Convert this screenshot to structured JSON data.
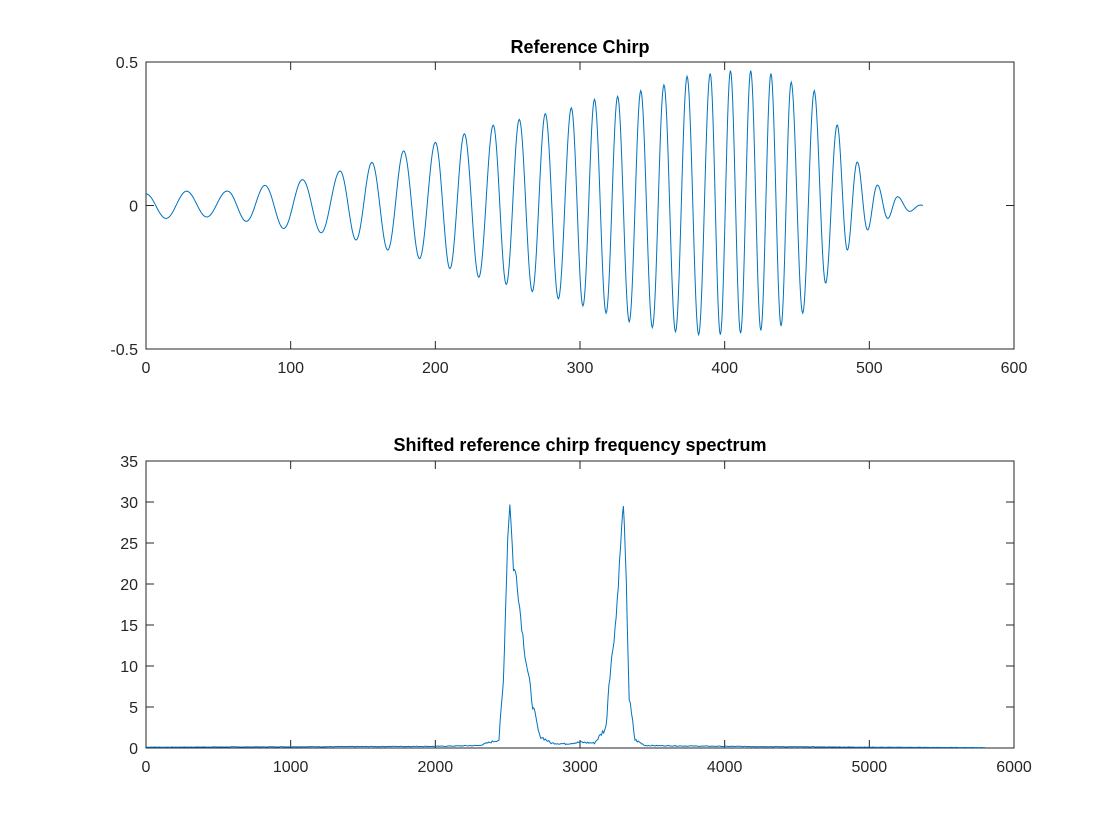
{
  "figure": {
    "background": "#ffffff",
    "line_color": "#0072bd",
    "axis_color": "#262626"
  },
  "chart_data": [
    {
      "type": "line",
      "title": "Reference Chirp",
      "xlabel": "",
      "ylabel": "",
      "xlim": [
        0,
        600
      ],
      "ylim": [
        -0.5,
        0.5
      ],
      "xticks": [
        0,
        100,
        200,
        300,
        400,
        500,
        600
      ],
      "yticks": [
        -0.5,
        0,
        0.5
      ],
      "xtick_labels": [
        "0",
        "100",
        "200",
        "300",
        "400",
        "500",
        "600"
      ],
      "ytick_labels": [
        "-0.5",
        "0",
        "0.5"
      ],
      "grid": false,
      "series": [
        {
          "color": "#0072bd",
          "x_range": [
            0,
            537
          ],
          "description_points": {
            "x": [
              0,
              28,
              56,
              82,
              108,
              134,
              156,
              178,
              200,
              220,
              240,
              258,
              276,
              294,
              310,
              326,
              342,
              358,
              374,
              390,
              404,
              418,
              432,
              446,
              462,
              478,
              492,
              506,
              520,
              537
            ],
            "peak_y": [
              0.04,
              0.05,
              0.05,
              0.07,
              0.09,
              0.12,
              0.15,
              0.19,
              0.22,
              0.25,
              0.28,
              0.3,
              0.32,
              0.34,
              0.37,
              0.38,
              0.4,
              0.42,
              0.45,
              0.46,
              0.47,
              0.47,
              0.46,
              0.43,
              0.4,
              0.28,
              0.15,
              0.07,
              0.03,
              0.0
            ],
            "trough_y": [
              -0.05,
              -0.04,
              -0.04,
              -0.07,
              -0.09,
              -0.1,
              -0.14,
              -0.17,
              -0.2,
              -0.24,
              -0.26,
              -0.29,
              -0.31,
              -0.34,
              -0.36,
              -0.39,
              -0.42,
              -0.43,
              -0.45,
              -0.45,
              -0.45,
              -0.44,
              -0.43,
              -0.41,
              -0.34,
              -0.2,
              -0.11,
              -0.06,
              -0.03,
              -0.01
            ]
          }
        }
      ]
    },
    {
      "type": "line",
      "title": "Shifted reference chirp frequency spectrum",
      "xlabel": "",
      "ylabel": "",
      "xlim": [
        0,
        6000
      ],
      "ylim": [
        0,
        35
      ],
      "xticks": [
        0,
        1000,
        2000,
        3000,
        4000,
        5000,
        6000
      ],
      "yticks": [
        0,
        5,
        10,
        15,
        20,
        25,
        30,
        35
      ],
      "xtick_labels": [
        "0",
        "1000",
        "2000",
        "3000",
        "4000",
        "5000",
        "6000"
      ],
      "ytick_labels": [
        "0",
        "5",
        "10",
        "15",
        "20",
        "25",
        "30",
        "35"
      ],
      "grid": false,
      "series": [
        {
          "color": "#0072bd",
          "x": [
            0,
            2000,
            2300,
            2440,
            2470,
            2500,
            2515,
            2540,
            2560,
            2590,
            2620,
            2650,
            2680,
            2720,
            2800,
            2900,
            3000,
            3100,
            3180,
            3200,
            3220,
            3250,
            3280,
            3300,
            3320,
            3340,
            3380,
            3450,
            4000,
            5000,
            5800
          ],
          "y": [
            0.1,
            0.2,
            0.3,
            1.0,
            8.0,
            25.5,
            30.0,
            22.0,
            21.0,
            16.0,
            11.5,
            8.0,
            4.5,
            1.5,
            0.6,
            0.5,
            0.7,
            0.6,
            2.5,
            8.0,
            11.0,
            16.0,
            24.5,
            30.0,
            20.0,
            6.0,
            1.0,
            0.3,
            0.2,
            0.1,
            0.05
          ]
        }
      ]
    }
  ]
}
